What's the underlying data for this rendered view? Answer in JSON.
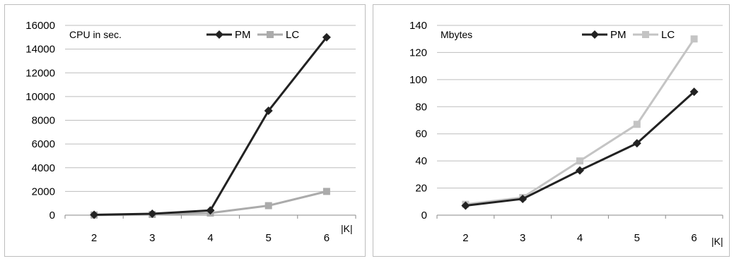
{
  "chart_data": [
    {
      "type": "line",
      "title": "",
      "ylabel": "CPU in sec.",
      "xlabel": "|K|",
      "categories": [
        "2",
        "3",
        "4",
        "5",
        "6"
      ],
      "ylim": [
        0,
        16000
      ],
      "yticks": [
        "0",
        "2000",
        "4000",
        "6000",
        "8000",
        "10000",
        "12000",
        "14000",
        "16000"
      ],
      "grid": "horizontal",
      "legend_position": "top-right",
      "series": [
        {
          "name": "PM",
          "values": [
            30,
            120,
            400,
            8800,
            15000
          ],
          "color": "#222222",
          "marker": "diamond"
        },
        {
          "name": "LC",
          "values": [
            10,
            60,
            180,
            800,
            2000
          ],
          "color": "#ababab",
          "marker": "square"
        }
      ]
    },
    {
      "type": "line",
      "title": "",
      "ylabel": "Mbytes",
      "xlabel": "|K|",
      "categories": [
        "2",
        "3",
        "4",
        "5",
        "6"
      ],
      "ylim": [
        0,
        140
      ],
      "yticks": [
        "0",
        "20",
        "40",
        "60",
        "80",
        "100",
        "120",
        "140"
      ],
      "grid": "horizontal",
      "legend_position": "top-right",
      "series": [
        {
          "name": "PM",
          "values": [
            7,
            12,
            33,
            53,
            91
          ],
          "color": "#222222",
          "marker": "diamond"
        },
        {
          "name": "LC",
          "values": [
            8,
            13,
            40,
            67,
            130
          ],
          "color": "#c4c4c4",
          "marker": "square"
        }
      ]
    }
  ]
}
